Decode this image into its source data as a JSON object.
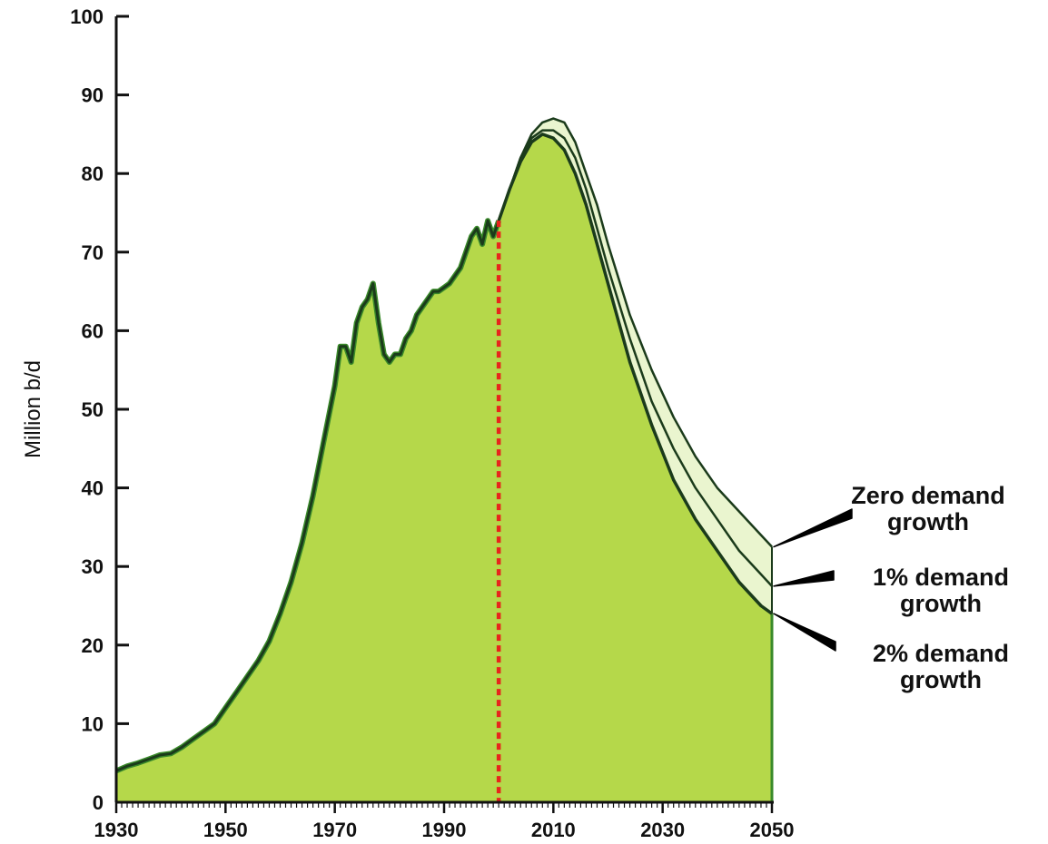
{
  "chart_data": {
    "type": "area",
    "title": "",
    "xlabel": "",
    "ylabel": "Million b/d",
    "xlim": [
      1930,
      2050
    ],
    "ylim": [
      0,
      100
    ],
    "x_ticks": [
      "1930",
      "1950",
      "1970",
      "1990",
      "2010",
      "2030",
      "2050"
    ],
    "y_ticks": [
      "0",
      "10",
      "20",
      "30",
      "40",
      "50",
      "60",
      "70",
      "80",
      "90",
      "100"
    ],
    "grid": false,
    "legend": "none",
    "divider_year": 2000,
    "colors": {
      "history_fill": "#b5d84a",
      "scenario_fill": "#eaf5cf",
      "outline": "#1b3b1b",
      "history_edge": "#3a8a2a",
      "divider": "#e8241c",
      "axis": "#111111"
    },
    "historical": {
      "x": [
        1930,
        1932,
        1934,
        1936,
        1938,
        1940,
        1942,
        1944,
        1946,
        1948,
        1950,
        1952,
        1954,
        1956,
        1958,
        1960,
        1962,
        1964,
        1966,
        1968,
        1970,
        1971,
        1972,
        1973,
        1974,
        1975,
        1976,
        1977,
        1978,
        1979,
        1980,
        1981,
        1982,
        1983,
        1984,
        1985,
        1986,
        1987,
        1988,
        1989,
        1990,
        1991,
        1992,
        1993,
        1994,
        1995,
        1996,
        1997,
        1998,
        1999,
        2000
      ],
      "y": [
        4,
        4.6,
        5,
        5.5,
        6,
        6.2,
        7,
        8,
        9,
        10,
        12,
        14,
        16,
        18,
        20.5,
        24,
        28,
        33,
        39,
        46,
        53,
        58,
        58,
        56,
        61,
        63,
        64,
        66,
        61,
        57,
        56,
        57,
        57,
        59,
        60,
        62,
        63,
        64,
        65,
        65,
        65.5,
        66,
        67,
        68,
        70,
        72,
        73,
        71,
        74,
        72,
        74
      ]
    },
    "series": [
      {
        "name": "Zero demand growth",
        "x": [
          2000,
          2002,
          2004,
          2006,
          2008,
          2010,
          2012,
          2014,
          2016,
          2018,
          2020,
          2024,
          2028,
          2032,
          2036,
          2040,
          2044,
          2048,
          2050
        ],
        "y": [
          74,
          78,
          82,
          85,
          86.5,
          87,
          86.5,
          84,
          80,
          76,
          71,
          62,
          55,
          49,
          44,
          40,
          37,
          34,
          32.5
        ]
      },
      {
        "name": "1% demand growth",
        "x": [
          2000,
          2002,
          2004,
          2006,
          2008,
          2010,
          2012,
          2014,
          2016,
          2018,
          2020,
          2024,
          2028,
          2032,
          2036,
          2040,
          2044,
          2048,
          2050
        ],
        "y": [
          74,
          78,
          82,
          84.5,
          85.5,
          85.5,
          84.5,
          82,
          78,
          73,
          68,
          59,
          51,
          45,
          40,
          36,
          32,
          29,
          27.5
        ]
      },
      {
        "name": "2% demand growth",
        "x": [
          2000,
          2002,
          2004,
          2006,
          2008,
          2010,
          2012,
          2014,
          2016,
          2018,
          2020,
          2024,
          2028,
          2032,
          2036,
          2040,
          2044,
          2048,
          2050
        ],
        "y": [
          74,
          78,
          81.5,
          84,
          85,
          84.5,
          83,
          80,
          76,
          71,
          66,
          56,
          48,
          41,
          36,
          32,
          28,
          25,
          24
        ]
      }
    ],
    "annotations": [
      {
        "lines": [
          "Zero demand",
          "growth"
        ],
        "series": "Zero demand growth"
      },
      {
        "lines": [
          "1% demand",
          "growth"
        ],
        "series": "1% demand growth"
      },
      {
        "lines": [
          "2% demand",
          "growth"
        ],
        "series": "2% demand growth"
      }
    ]
  }
}
